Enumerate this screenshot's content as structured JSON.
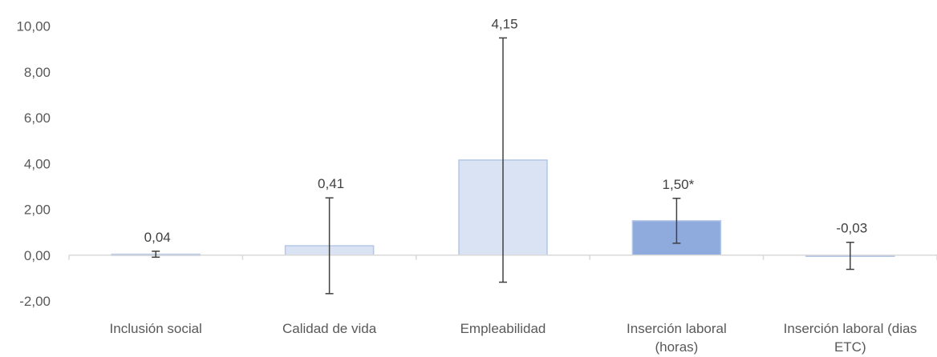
{
  "chart_data": {
    "type": "bar",
    "categories": [
      [
        "Inclusión social"
      ],
      [
        "Calidad de vida"
      ],
      [
        "Empleabilidad"
      ],
      [
        "Inserción laboral",
        "(horas)"
      ],
      [
        "Inserción laboral (dias",
        "ETC)"
      ]
    ],
    "values": [
      0.04,
      0.41,
      4.15,
      1.5,
      -0.03
    ],
    "data_labels": [
      "0,04",
      "0,41",
      "4,15",
      "1,50*",
      "-0,03"
    ],
    "error_low": [
      -0.09,
      -1.68,
      -1.18,
      0.52,
      -0.62
    ],
    "error_high": [
      0.17,
      2.5,
      9.48,
      2.48,
      0.56
    ],
    "highlighted": [
      false,
      false,
      false,
      true,
      false
    ],
    "y_ticks": [
      -2,
      0,
      2,
      4,
      6,
      8,
      10
    ],
    "y_tick_labels": [
      "-2,00",
      "0,00",
      "2,00",
      "4,00",
      "6,00",
      "8,00",
      "10,00"
    ],
    "ylim": [
      -2,
      10
    ],
    "grid": false,
    "colors": {
      "bar_fill": "#dae3f3",
      "bar_stroke": "#b4c7e7",
      "highlight_fill": "#8faadc",
      "highlight_stroke": "#b4c7e7",
      "error_bar": "#404040",
      "axis": "#d9d9d9"
    }
  }
}
